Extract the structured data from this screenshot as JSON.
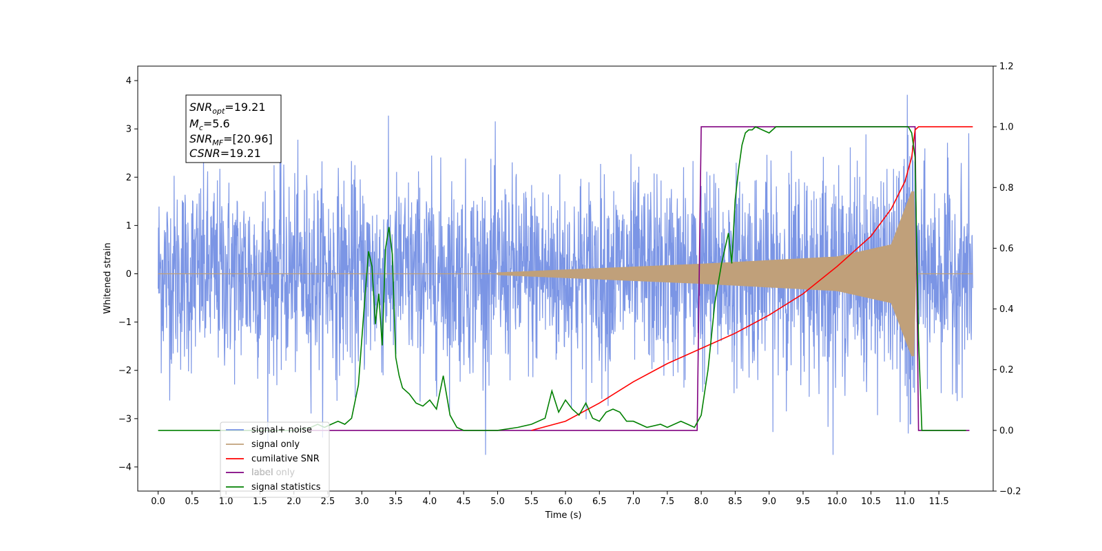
{
  "chart_data": {
    "type": "line",
    "xlabel": "Time (s)",
    "ylabel_left": "Whitened strain",
    "ylabel_right": "",
    "x_ticks": [
      "0.0",
      "0.5",
      "1.0",
      "1.5",
      "2.0",
      "2.5",
      "3.0",
      "3.5",
      "4.0",
      "4.5",
      "5.0",
      "5.5",
      "6.0",
      "6.5",
      "7.0",
      "7.5",
      "8.0",
      "8.5",
      "9.0",
      "9.5",
      "10.0",
      "10.5",
      "11.0",
      "11.5"
    ],
    "y_left_ticks": [
      "−4",
      "−3",
      "−2",
      "−1",
      "0",
      "1",
      "2",
      "3",
      "4"
    ],
    "y_right_ticks": [
      "−0.2",
      "0.0",
      "0.2",
      "0.4",
      "0.6",
      "0.8",
      "1.0",
      "1.2"
    ],
    "xlim": [
      -0.3,
      12.3
    ],
    "ylim_left": [
      -4.5,
      4.3
    ],
    "ylim_right": [
      -0.2,
      1.2
    ],
    "grid": false,
    "legend_position": "lower-left",
    "annotation": {
      "snr_opt": {
        "base": "SNR",
        "sub": "opt",
        "value": "=19.21"
      },
      "mc": {
        "base": "M",
        "sub": "c",
        "value": "=5.6"
      },
      "snr_mf": {
        "base": "SNR",
        "sub": "MF",
        "value": "=[20.96]"
      },
      "csnr": {
        "base": "CSNR",
        "value": "=19.21"
      }
    },
    "series": [
      {
        "name": "signal+ noise",
        "axis": "left",
        "color": "#7b95e5",
        "description_values": {
          "time_range": [
            0.0,
            12.0
          ],
          "noise_std": 1.0,
          "peak_max": 3.9,
          "peak_min": -3.75
        }
      },
      {
        "name": "signal only",
        "axis": "left",
        "color": "#c0a07a",
        "chirp": {
          "t_merge": 11.15,
          "amplitude_at_t": [
            [
              5.0,
              0.02
            ],
            [
              8.0,
              0.2
            ],
            [
              10.0,
              0.35
            ],
            [
              10.8,
              0.6
            ],
            [
              11.1,
              1.7
            ]
          ]
        }
      },
      {
        "name": "cumilative SNR",
        "axis": "right",
        "color": "#ff0000",
        "x": [
          5.5,
          6.0,
          6.5,
          7.0,
          7.5,
          8.0,
          8.5,
          9.0,
          9.5,
          10.0,
          10.5,
          10.8,
          11.0,
          11.1,
          11.15,
          11.2,
          12.0
        ],
        "y": [
          0.0,
          0.03,
          0.09,
          0.16,
          0.22,
          0.27,
          0.32,
          0.38,
          0.45,
          0.54,
          0.64,
          0.73,
          0.82,
          0.9,
          0.99,
          1.0,
          1.0
        ]
      },
      {
        "name": "label",
        "axis": "right",
        "color": "#800080",
        "x": [
          2.2,
          7.94,
          8.0,
          11.15,
          11.2,
          11.95
        ],
        "y": [
          0.0,
          0.0,
          1.0,
          1.0,
          0.0,
          0.0
        ]
      },
      {
        "name": "label only",
        "axis": "right",
        "color": "#d8d8d8"
      },
      {
        "name": "signal statistics",
        "axis": "right",
        "color": "#008000",
        "x": [
          0.0,
          2.0,
          2.25,
          2.35,
          2.45,
          2.55,
          2.65,
          2.75,
          2.85,
          2.95,
          3.0,
          3.05,
          3.1,
          3.15,
          3.2,
          3.25,
          3.3,
          3.35,
          3.4,
          3.45,
          3.5,
          3.55,
          3.6,
          3.7,
          3.8,
          3.9,
          4.0,
          4.1,
          4.2,
          4.3,
          4.4,
          4.5,
          4.6,
          5.0,
          5.3,
          5.5,
          5.7,
          5.8,
          5.9,
          6.0,
          6.1,
          6.2,
          6.3,
          6.4,
          6.5,
          6.6,
          6.7,
          6.8,
          6.9,
          7.0,
          7.2,
          7.4,
          7.5,
          7.7,
          7.8,
          7.9,
          8.0,
          8.1,
          8.2,
          8.3,
          8.4,
          8.45,
          8.5,
          8.55,
          8.6,
          8.65,
          8.7,
          8.75,
          8.8,
          8.9,
          9.0,
          9.1,
          9.3,
          9.5,
          10.5,
          11.0,
          11.05,
          11.1,
          11.15,
          11.2,
          11.25,
          11.3,
          11.9
        ],
        "y": [
          0.0,
          0.0,
          0.01,
          0.02,
          0.01,
          0.02,
          0.03,
          0.02,
          0.04,
          0.15,
          0.3,
          0.45,
          0.59,
          0.54,
          0.35,
          0.45,
          0.28,
          0.6,
          0.67,
          0.58,
          0.24,
          0.18,
          0.14,
          0.12,
          0.09,
          0.08,
          0.1,
          0.07,
          0.18,
          0.05,
          0.01,
          0.0,
          0.0,
          0.0,
          0.01,
          0.02,
          0.04,
          0.13,
          0.06,
          0.1,
          0.07,
          0.05,
          0.09,
          0.04,
          0.03,
          0.06,
          0.07,
          0.06,
          0.03,
          0.03,
          0.01,
          0.02,
          0.01,
          0.03,
          0.02,
          0.01,
          0.05,
          0.2,
          0.42,
          0.55,
          0.65,
          0.55,
          0.76,
          0.86,
          0.94,
          0.98,
          0.99,
          0.99,
          1.0,
          0.99,
          0.98,
          1.0,
          1.0,
          1.0,
          1.0,
          1.0,
          1.0,
          0.98,
          0.9,
          0.3,
          0.0,
          0.0,
          0.0
        ]
      }
    ]
  }
}
